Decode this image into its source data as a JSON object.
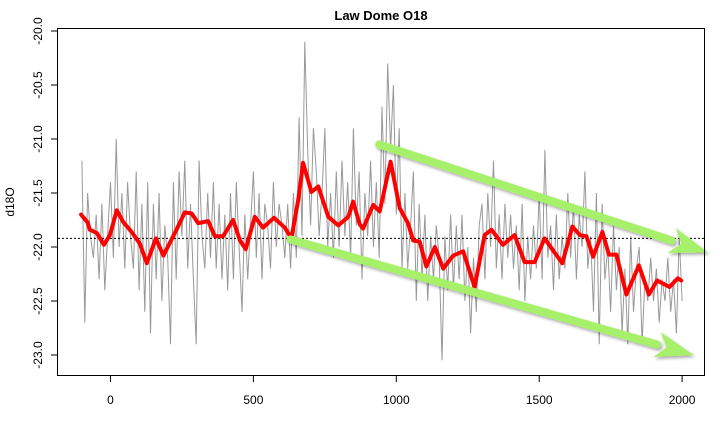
{
  "chart_data": {
    "type": "line",
    "title": "Law Dome O18",
    "xlabel": "",
    "ylabel": "d18O",
    "xlim": [
      -170,
      2090
    ],
    "ylim": [
      -23.2,
      -19.9
    ],
    "x_ticks": [
      0,
      500,
      1000,
      1500,
      2000
    ],
    "x_tick_labels": [
      "0",
      "500",
      "1000",
      "1500",
      "2000"
    ],
    "y_ticks": [
      -20.0,
      -20.5,
      -21.0,
      -21.5,
      -22.0,
      -22.5,
      -23.0
    ],
    "y_tick_labels": [
      "-20.0",
      "-20.5",
      "-21.0",
      "-21.5",
      "-22.0",
      "-22.5",
      "-23.0"
    ],
    "grid": false,
    "reference_line": {
      "value": -21.92,
      "style": "dotted",
      "color": "#000000"
    },
    "series": [
      {
        "name": "raw",
        "color": "#999999",
        "x_start": -100,
        "x_step": 10,
        "values": [
          -21.2,
          -22.7,
          -21.5,
          -21.9,
          -22.1,
          -21.7,
          -22.3,
          -21.6,
          -22.4,
          -21.9,
          -21.4,
          -22.1,
          -21.0,
          -22.0,
          -21.5,
          -22.2,
          -21.4,
          -21.9,
          -22.2,
          -21.3,
          -22.4,
          -21.6,
          -22.6,
          -21.4,
          -22.8,
          -21.6,
          -22.3,
          -21.5,
          -22.5,
          -21.8,
          -22.1,
          -22.9,
          -21.4,
          -22.3,
          -21.3,
          -21.9,
          -21.2,
          -22.2,
          -21.6,
          -22.3,
          -22.9,
          -21.2,
          -21.9,
          -22.2,
          -21.5,
          -22.1,
          -21.4,
          -22.2,
          -21.6,
          -22.3,
          -21.7,
          -22.4,
          -21.5,
          -22.3,
          -21.4,
          -22.0,
          -22.6,
          -21.7,
          -22.3,
          -21.8,
          -21.3,
          -22.1,
          -21.5,
          -22.3,
          -21.6,
          -21.8,
          -22.2,
          -21.4,
          -22.0,
          -21.6,
          -21.8,
          -22.1,
          -21.6,
          -22.2,
          -21.5,
          -22.1,
          -20.8,
          -21.9,
          -20.1,
          -21.1,
          -21.8,
          -20.9,
          -21.3,
          -21.9,
          -21.5,
          -20.9,
          -22.0,
          -21.5,
          -22.1,
          -21.3,
          -22.0,
          -21.2,
          -21.9,
          -21.4,
          -22.1,
          -20.9,
          -21.8,
          -21.3,
          -22.3,
          -21.5,
          -21.9,
          -21.2,
          -22.0,
          -21.4,
          -22.1,
          -20.7,
          -21.6,
          -20.3,
          -21.1,
          -20.5,
          -21.7,
          -20.9,
          -22.2,
          -21.5,
          -22.2,
          -21.8,
          -21.3,
          -22.5,
          -21.6,
          -22.3,
          -21.7,
          -22.5,
          -21.9,
          -22.3,
          -21.8,
          -22.1,
          -23.05,
          -21.9,
          -22.4,
          -21.7,
          -22.4,
          -21.8,
          -22.3,
          -21.7,
          -22.5,
          -22.0,
          -22.8,
          -22.1,
          -22.6,
          -21.8,
          -21.6,
          -22.3,
          -21.5,
          -22.0,
          -21.2,
          -22.2,
          -21.7,
          -22.3,
          -21.6,
          -22.1,
          -21.7,
          -22.2,
          -21.8,
          -22.4,
          -21.6,
          -22.5,
          -21.9,
          -22.3,
          -21.8,
          -22.2,
          -21.5,
          -22.3,
          -21.1,
          -22.1,
          -21.8,
          -22.4,
          -21.7,
          -22.3,
          -21.9,
          -22.2,
          -21.5,
          -22.1,
          -21.6,
          -22.3,
          -21.7,
          -22.0,
          -21.3,
          -22.2,
          -21.9,
          -22.6,
          -21.5,
          -22.9,
          -21.6,
          -22.3,
          -22.0,
          -22.6,
          -21.8,
          -22.4,
          -22.0,
          -22.8,
          -22.2,
          -22.9,
          -21.9,
          -22.6,
          -22.2,
          -22.0,
          -22.9,
          -22.3,
          -22.5,
          -22.1,
          -22.5,
          -22.2,
          -22.7,
          -22.3,
          -22.5,
          -22.1,
          -22.6,
          -22.3,
          -22.8,
          -21.9,
          -22.5
        ]
      },
      {
        "name": "smoothed",
        "color": "#ff0000",
        "points": [
          [
            -103,
            -21.7
          ],
          [
            -81,
            -21.77
          ],
          [
            -72,
            -21.84
          ],
          [
            -48,
            -21.87
          ],
          [
            -23,
            -21.98
          ],
          [
            -2,
            -21.89
          ],
          [
            22,
            -21.66
          ],
          [
            45,
            -21.77
          ],
          [
            74,
            -21.86
          ],
          [
            103,
            -21.97
          ],
          [
            127,
            -22.15
          ],
          [
            159,
            -21.92
          ],
          [
            185,
            -22.08
          ],
          [
            231,
            -21.84
          ],
          [
            260,
            -21.68
          ],
          [
            284,
            -21.69
          ],
          [
            307,
            -21.78
          ],
          [
            342,
            -21.76
          ],
          [
            365,
            -21.9
          ],
          [
            394,
            -21.9
          ],
          [
            429,
            -21.75
          ],
          [
            453,
            -21.94
          ],
          [
            473,
            -22.02
          ],
          [
            505,
            -21.72
          ],
          [
            534,
            -21.82
          ],
          [
            572,
            -21.73
          ],
          [
            610,
            -21.82
          ],
          [
            633,
            -21.92
          ],
          [
            657,
            -21.56
          ],
          [
            674,
            -21.22
          ],
          [
            703,
            -21.49
          ],
          [
            727,
            -21.44
          ],
          [
            762,
            -21.72
          ],
          [
            797,
            -21.8
          ],
          [
            832,
            -21.72
          ],
          [
            849,
            -21.58
          ],
          [
            872,
            -21.79
          ],
          [
            884,
            -21.83
          ],
          [
            919,
            -21.61
          ],
          [
            942,
            -21.67
          ],
          [
            980,
            -21.21
          ],
          [
            1012,
            -21.64
          ],
          [
            1041,
            -21.78
          ],
          [
            1059,
            -21.94
          ],
          [
            1082,
            -21.95
          ],
          [
            1105,
            -22.18
          ],
          [
            1135,
            -22.0
          ],
          [
            1164,
            -22.2
          ],
          [
            1199,
            -22.08
          ],
          [
            1234,
            -22.04
          ],
          [
            1274,
            -22.37
          ],
          [
            1309,
            -21.89
          ],
          [
            1333,
            -21.84
          ],
          [
            1373,
            -21.98
          ],
          [
            1414,
            -21.89
          ],
          [
            1449,
            -22.14
          ],
          [
            1484,
            -22.14
          ],
          [
            1519,
            -21.92
          ],
          [
            1548,
            -22.03
          ],
          [
            1581,
            -22.15
          ],
          [
            1616,
            -21.81
          ],
          [
            1642,
            -21.89
          ],
          [
            1665,
            -21.9
          ],
          [
            1689,
            -22.09
          ],
          [
            1721,
            -21.86
          ],
          [
            1744,
            -22.07
          ],
          [
            1770,
            -22.07
          ],
          [
            1805,
            -22.44
          ],
          [
            1849,
            -22.17
          ],
          [
            1884,
            -22.44
          ],
          [
            1913,
            -22.31
          ],
          [
            1956,
            -22.37
          ],
          [
            1985,
            -22.29
          ],
          [
            1997,
            -22.31
          ]
        ]
      }
    ],
    "annotations": [
      {
        "type": "arrow",
        "color": "#a6f06a",
        "from": [
          940,
          -21.05
        ],
        "to": [
          2090,
          -22.05
        ]
      },
      {
        "type": "arrow",
        "color": "#a6f06a",
        "from": [
          630,
          -21.93
        ],
        "to": [
          2040,
          -23.0
        ]
      }
    ]
  }
}
